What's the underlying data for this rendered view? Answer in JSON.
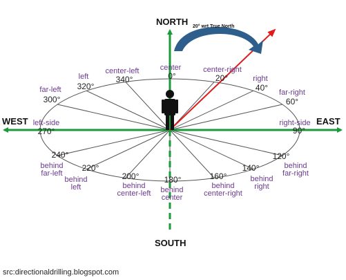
{
  "cardinals": {
    "north": "NORTH",
    "south": "SOUTH",
    "east": "EAST",
    "west": "WEST"
  },
  "annotation": "20° wrt True North",
  "source": "src:directionaldrilling.blogspot.com",
  "colors": {
    "axis": "#1a9a3a",
    "true_arrow": "#e01b1b",
    "rotation_arrow": "#2e5e8c",
    "ellipse": "#555555",
    "label_purple": "#6b3a8e",
    "person": "#111111"
  },
  "bearings": [
    {
      "deg_text": "0°",
      "deg": 0,
      "name": "center"
    },
    {
      "deg_text": "20°",
      "deg": 20,
      "name": "center-right"
    },
    {
      "deg_text": "40°",
      "deg": 40,
      "name": "right"
    },
    {
      "deg_text": "60°",
      "deg": 60,
      "name": "far-right"
    },
    {
      "deg_text": "90°",
      "deg": 90,
      "name": "right-side"
    },
    {
      "deg_text": "120°",
      "deg": 120,
      "name": "behind far-right"
    },
    {
      "deg_text": "140°",
      "deg": 140,
      "name": "behind right"
    },
    {
      "deg_text": "160°",
      "deg": 160,
      "name": "behind center-right"
    },
    {
      "deg_text": "180°",
      "deg": 180,
      "name": "behind center"
    },
    {
      "deg_text": "200°",
      "deg": 200,
      "name": "behind center-left"
    },
    {
      "deg_text": "220°",
      "deg": 220,
      "name": "behind left"
    },
    {
      "deg_text": "240°",
      "deg": 240,
      "name": "behind far-left"
    },
    {
      "deg_text": "270°",
      "deg": 270,
      "name": "left-side"
    },
    {
      "deg_text": "300°",
      "deg": 300,
      "name": "far-left"
    },
    {
      "deg_text": "320°",
      "deg": 320,
      "name": "left"
    },
    {
      "deg_text": "340°",
      "deg": 340,
      "name": "center-left"
    }
  ]
}
